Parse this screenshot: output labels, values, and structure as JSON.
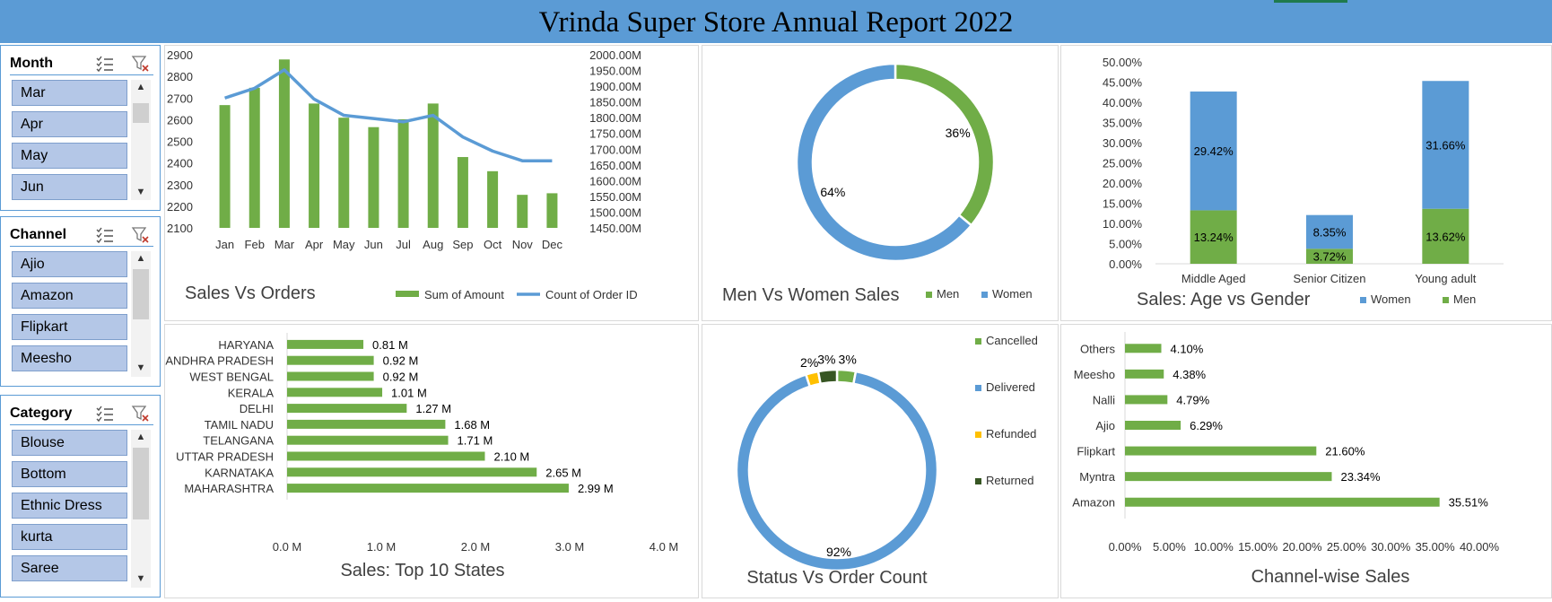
{
  "header": {
    "title": "Vrinda Super Store Annual Report 2022"
  },
  "slicers": [
    {
      "title": "Month",
      "items": [
        "Mar",
        "Apr",
        "May",
        "Jun"
      ]
    },
    {
      "title": "Channel",
      "items": [
        "Ajio",
        "Amazon",
        "Flipkart",
        "Meesho"
      ]
    },
    {
      "title": "Category",
      "items": [
        "Blouse",
        "Bottom",
        "Ethnic Dress",
        "kurta",
        "Saree"
      ]
    }
  ],
  "colors": {
    "green": "#70ad47",
    "blue": "#5b9bd5",
    "gold": "#ffc000",
    "dark_green": "#375623",
    "header": "#5b9bd5"
  },
  "icons": {
    "multi_select": "multi-select-icon",
    "clear_filter": "clear-filter-icon",
    "scroll_up": "▲",
    "scroll_down": "▼"
  },
  "chart_data": [
    {
      "id": "sales_vs_orders",
      "type": "bar",
      "title": "Sales Vs Orders",
      "categories": [
        "Jan",
        "Feb",
        "Mar",
        "Apr",
        "May",
        "Jun",
        "Jul",
        "Aug",
        "Sep",
        "Oct",
        "Nov",
        "Dec"
      ],
      "series": [
        {
          "name": "Sum of Amount",
          "type": "bar",
          "axis": "right",
          "values": [
            1840,
            1895,
            1985,
            1845,
            1800,
            1770,
            1795,
            1845,
            1675,
            1630,
            1555,
            1560
          ]
        },
        {
          "name": "Count of Order ID",
          "type": "line",
          "axis": "left",
          "values": [
            2700,
            2745,
            2830,
            2695,
            2620,
            2605,
            2590,
            2620,
            2520,
            2455,
            2410,
            2410
          ]
        }
      ],
      "left_axis": {
        "ticks": [
          "2900",
          "2800",
          "2700",
          "2600",
          "2500",
          "2400",
          "2300",
          "2200",
          "2100"
        ],
        "ylim": [
          2100,
          2900
        ]
      },
      "right_axis": {
        "ticks": [
          "2000.00M",
          "1950.00M",
          "1900.00M",
          "1850.00M",
          "1800.00M",
          "1750.00M",
          "1700.00M",
          "1650.00M",
          "1600.00M",
          "1550.00M",
          "1500.00M",
          "1450.00M"
        ],
        "ylim": [
          1450,
          2000
        ]
      },
      "legend_position": "bottom-right"
    },
    {
      "id": "men_vs_women",
      "type": "pie",
      "title": "Men Vs Women Sales",
      "slices": [
        {
          "name": "Men",
          "value": 36,
          "label": "36%"
        },
        {
          "name": "Women",
          "value": 64,
          "label": "64%"
        }
      ],
      "legend": [
        "Men",
        "Women"
      ],
      "legend_position": "bottom-right"
    },
    {
      "id": "age_vs_gender",
      "type": "bar",
      "title": "Sales: Age vs Gender",
      "categories": [
        "Middle Aged",
        "Senior Citizen",
        "Young adult"
      ],
      "series": [
        {
          "name": "Men",
          "values": [
            13.24,
            3.72,
            13.62
          ],
          "labels": [
            "13.24%",
            "3.72%",
            "13.62%"
          ]
        },
        {
          "name": "Women",
          "values": [
            29.42,
            8.35,
            31.66
          ],
          "labels": [
            "29.42%",
            "8.35%",
            "31.66%"
          ]
        }
      ],
      "y_ticks": [
        "50.00%",
        "45.00%",
        "40.00%",
        "35.00%",
        "30.00%",
        "25.00%",
        "20.00%",
        "15.00%",
        "10.00%",
        "5.00%",
        "0.00%"
      ],
      "ylim": [
        0,
        50
      ],
      "legend": [
        "Women",
        "Men"
      ],
      "legend_position": "bottom-right"
    },
    {
      "id": "top_states",
      "type": "bar",
      "orientation": "horizontal",
      "title": "Sales: Top 10 States",
      "categories": [
        "HARYANA",
        "ANDHRA PRADESH",
        "WEST BENGAL",
        "KERALA",
        "DELHI",
        "TAMIL NADU",
        "TELANGANA",
        "UTTAR PRADESH",
        "KARNATAKA",
        "MAHARASHTRA"
      ],
      "values": [
        0.81,
        0.92,
        0.92,
        1.01,
        1.27,
        1.68,
        1.71,
        2.1,
        2.65,
        2.99
      ],
      "labels": [
        "0.81 M",
        "0.92 M",
        "0.92 M",
        "1.01 M",
        "1.27 M",
        "1.68 M",
        "1.71 M",
        "2.10 M",
        "2.65 M",
        "2.99 M"
      ],
      "x_ticks": [
        "0.0 M",
        "1.0 M",
        "2.0 M",
        "3.0 M",
        "4.0 M"
      ],
      "xlim": [
        0,
        4
      ]
    },
    {
      "id": "status_vs_orders",
      "type": "pie",
      "title": "Status Vs Order Count",
      "slices": [
        {
          "name": "Cancelled",
          "value": 3,
          "label": "3%"
        },
        {
          "name": "Delivered",
          "value": 92,
          "label": "92%"
        },
        {
          "name": "Refunded",
          "value": 2,
          "label": "2%"
        },
        {
          "name": "Returned",
          "value": 3,
          "label": "3%"
        }
      ],
      "legend": [
        "Cancelled",
        "Delivered",
        "Refunded",
        "Returned"
      ],
      "legend_position": "right"
    },
    {
      "id": "channel_sales",
      "type": "bar",
      "orientation": "horizontal",
      "title": "Channel-wise Sales",
      "categories": [
        "Others",
        "Meesho",
        "Nalli",
        "Ajio",
        "Flipkart",
        "Myntra",
        "Amazon"
      ],
      "values": [
        4.1,
        4.38,
        4.79,
        6.29,
        21.6,
        23.34,
        35.51
      ],
      "labels": [
        "4.10%",
        "4.38%",
        "4.79%",
        "6.29%",
        "21.60%",
        "23.34%",
        "35.51%"
      ],
      "x_ticks": [
        "0.00%",
        "5.00%",
        "10.00%",
        "15.00%",
        "20.00%",
        "25.00%",
        "30.00%",
        "35.00%",
        "40.00%"
      ],
      "xlim": [
        0,
        40
      ]
    }
  ]
}
